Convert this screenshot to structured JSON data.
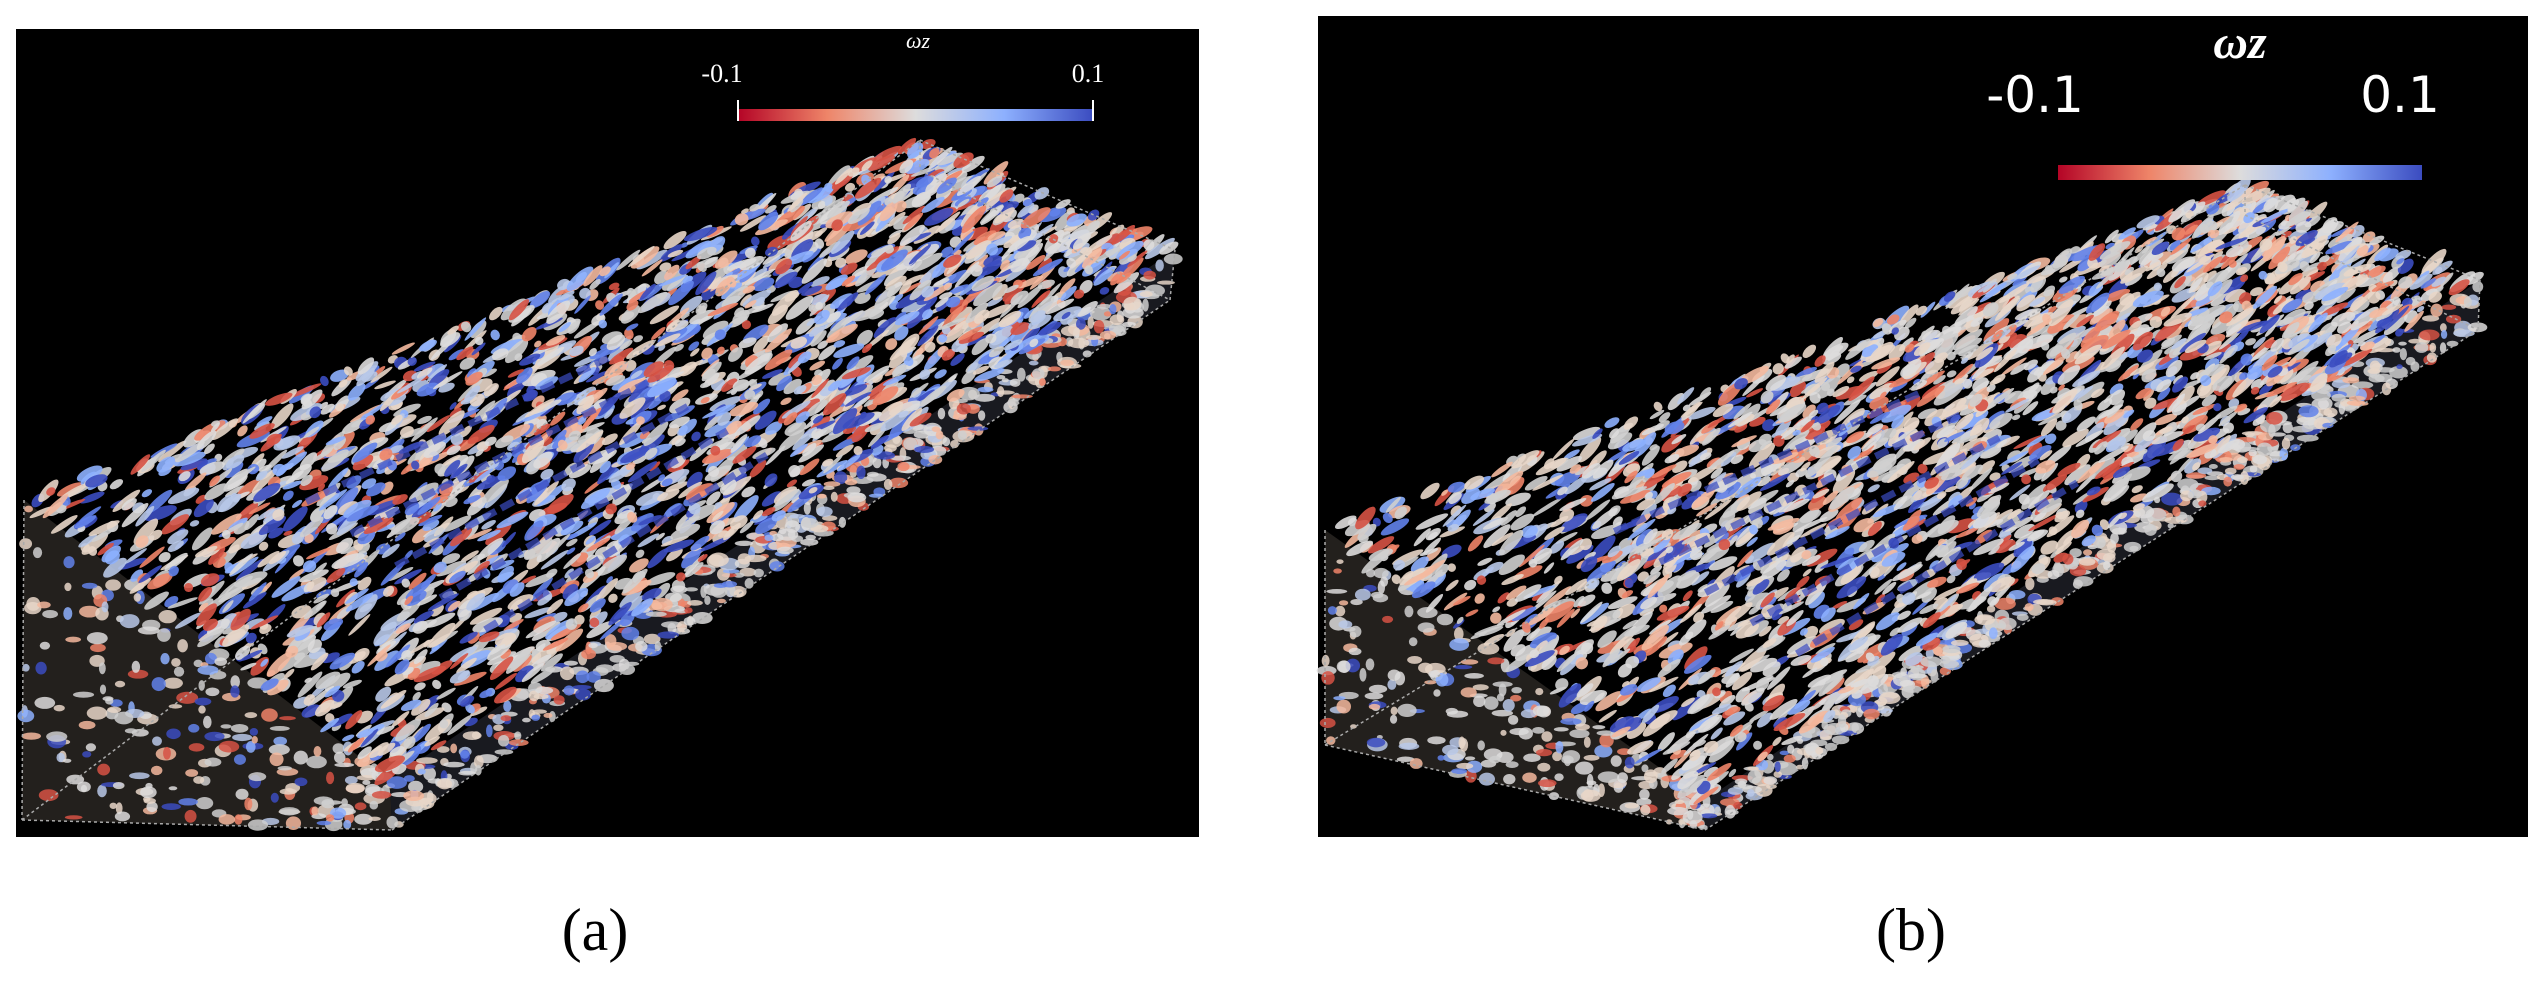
{
  "panels": [
    {
      "label": "(a)",
      "colorbar": {
        "title": "ωz",
        "min_label": "-0.1",
        "max_label": "0.1"
      }
    },
    {
      "label": "(b)",
      "colorbar": {
        "title": "ωz",
        "min_label": "-0.1",
        "max_label": "0.1"
      }
    }
  ]
}
